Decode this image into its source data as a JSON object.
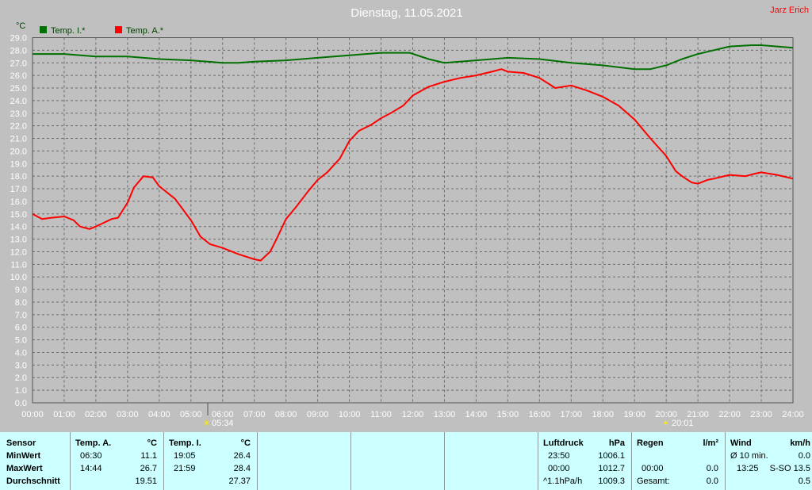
{
  "header": {
    "title": "Dienstag, 11.05.2021",
    "author": "Jarz Erich",
    "unit": "°C",
    "legend": [
      {
        "label": "Temp. I.*",
        "color": "#007000"
      },
      {
        "label": "Temp. A.*",
        "color": "#ff0000"
      }
    ],
    "sunrise": "05:34",
    "sunset": "20:01"
  },
  "colors": {
    "background": "#c0c0c0",
    "grid": "#707070",
    "panel": "#ccffff",
    "indoor": "#007000",
    "outdoor": "#ff0000"
  },
  "chart_data": {
    "type": "line",
    "title": "Dienstag, 11.05.2021",
    "ylabel": "°C",
    "xlim": [
      0,
      24
    ],
    "ylim": [
      0,
      29
    ],
    "y_ticks": [
      "0.0",
      "1.0",
      "2.0",
      "3.0",
      "4.0",
      "5.0",
      "6.0",
      "7.0",
      "8.0",
      "9.0",
      "10.0",
      "11.0",
      "12.0",
      "13.0",
      "14.0",
      "15.0",
      "16.0",
      "17.0",
      "18.0",
      "19.0",
      "20.0",
      "21.0",
      "22.0",
      "23.0",
      "24.0",
      "25.0",
      "26.0",
      "27.0",
      "28.0",
      "29.0"
    ],
    "x_ticks": [
      "00:00",
      "01:00",
      "02:00",
      "03:00",
      "04:00",
      "05:00",
      "06:00",
      "07:00",
      "08:00",
      "09:00",
      "10:00",
      "11:00",
      "12:00",
      "13:00",
      "14:00",
      "15:00",
      "16:00",
      "17:00",
      "18:00",
      "19:00",
      "20:00",
      "21:00",
      "22:00",
      "23:00",
      "24:00"
    ],
    "grid": true,
    "legend_position": "top-left",
    "series": [
      {
        "name": "Temp. I.*",
        "color": "#007000",
        "x": [
          0,
          1,
          2,
          3,
          4,
          5,
          6,
          6.5,
          7,
          8,
          9,
          10,
          11,
          11.9,
          12.5,
          13,
          14,
          15,
          16,
          17,
          18,
          19,
          19.5,
          20,
          20.5,
          21,
          22,
          22.7,
          23,
          24
        ],
        "y": [
          27.7,
          27.7,
          27.5,
          27.5,
          27.3,
          27.2,
          27.0,
          27.0,
          27.1,
          27.2,
          27.4,
          27.6,
          27.8,
          27.8,
          27.3,
          27.0,
          27.2,
          27.4,
          27.3,
          27.0,
          26.8,
          26.5,
          26.5,
          26.8,
          27.3,
          27.7,
          28.3,
          28.4,
          28.4,
          28.2
        ]
      },
      {
        "name": "Temp. A.*",
        "color": "#ff0000",
        "x": [
          0,
          0.3,
          0.6,
          1,
          1.3,
          1.5,
          1.8,
          2,
          2.5,
          2.7,
          3,
          3.2,
          3.5,
          3.8,
          4,
          4.5,
          5,
          5.3,
          5.6,
          6,
          6.5,
          7,
          7.2,
          7.5,
          7.7,
          8,
          8.3,
          8.7,
          9,
          9.3,
          9.7,
          10,
          10.3,
          10.7,
          11,
          11.3,
          11.7,
          12,
          12.5,
          13,
          13.5,
          14,
          14.5,
          14.8,
          15,
          15.5,
          16,
          16.5,
          17,
          17.5,
          18,
          18.5,
          19,
          19.5,
          20,
          20.3,
          20.5,
          20.8,
          21,
          21.3,
          21.5,
          22,
          22.5,
          22.8,
          23,
          23.5,
          24
        ],
        "y": [
          15.0,
          14.6,
          14.7,
          14.8,
          14.5,
          14.0,
          13.8,
          14.0,
          14.6,
          14.7,
          15.9,
          17.1,
          18.0,
          17.9,
          17.2,
          16.2,
          14.5,
          13.2,
          12.6,
          12.3,
          11.8,
          11.4,
          11.3,
          12.0,
          13.0,
          14.6,
          15.5,
          16.8,
          17.7,
          18.3,
          19.4,
          20.8,
          21.6,
          22.1,
          22.6,
          23.0,
          23.6,
          24.4,
          25.1,
          25.5,
          25.8,
          26.0,
          26.3,
          26.5,
          26.3,
          26.2,
          25.8,
          25.0,
          25.2,
          24.8,
          24.3,
          23.6,
          22.5,
          21.0,
          19.6,
          18.4,
          18.0,
          17.5,
          17.4,
          17.7,
          17.8,
          18.1,
          18.0,
          18.2,
          18.3,
          18.1,
          17.8
        ]
      }
    ]
  },
  "table": {
    "sensor": {
      "head": "Sensor",
      "rows": [
        "MinWert",
        "MaxWert",
        "Durchschnitt"
      ]
    },
    "temp_a": {
      "head": "Temp. A.",
      "unit": "°C",
      "min_time": "06:30",
      "min": "11.1",
      "max_time": "14:44",
      "max": "26.7",
      "avg": "19.51"
    },
    "temp_i": {
      "head": "Temp. I.",
      "unit": "°C",
      "min_time": "19:05",
      "min": "26.4",
      "max_time": "21:59",
      "max": "28.4",
      "avg": "27.37"
    },
    "luftdruck": {
      "head": "Luftdruck",
      "unit": "hPa",
      "min_time": "23:50",
      "min": "1006.1",
      "max_time": "00:00",
      "max": "1012.7",
      "trend_label": "^1.1hPa/h",
      "current": "1009.3"
    },
    "regen": {
      "head": "Regen",
      "unit": "l/m²",
      "time": "00:00",
      "value": "0.0",
      "total_label": "Gesamt:",
      "total": "0.0"
    },
    "wind": {
      "head": "Wind",
      "unit": "km/h",
      "avg_label": "Ø 10 min.",
      "avg": "0.0",
      "gust_time": "13:25",
      "gust": "S-SO 13.5",
      "last": "0.5"
    }
  }
}
